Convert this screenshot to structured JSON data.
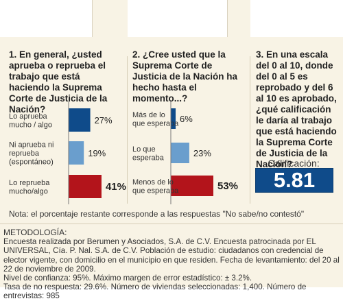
{
  "questions": {
    "q1": "1. En general, ¿usted aprueba o reprueba el trabajo que está haciendo la Suprema Corte de Justicia de la Nación?",
    "q2": "2. ¿Cree usted que la Suprema Corte de Justicia de la Nación ha hecho hasta el momento...?",
    "q3": "3. En una escala del 0 al 10, donde del 0 al 5 es reprobado y del 6 al 10 es aprobado, ¿qué calificación le daría al trabajo que está haciendo la Suprema Corte de Justicia de la Nación?"
  },
  "score": {
    "label": "Calificación:",
    "value": "5.81",
    "color": "#0f4b8a"
  },
  "note": "Nota: el porcentaje restante corresponde a las respuestas \"No sabe/no contestó\"",
  "methodology": {
    "title": "METODOLOGÍA:",
    "lines": [
      "Encuesta realizada por Berumen y Asociados, S.A. de C.V. Encuesta patrocinada por EL UNIVERSAL, Cía. P. Nal. S.A. de C.V. Población de estudio: ciudadanos con credencial de elector vigente, con domicilio en el municipio en que residen. Fecha de levantamiento: del 20 al 22 de noviembre de 2009.",
      "Nivel de confianza:  95%. Máximo margen de error estadístico: ± 3.2%.",
      "Tasa de no respuesta: 29.6%. Número de viviendas seleccionadas: 1,400. Número de entrevistas: 985"
    ]
  },
  "chart_data": [
    {
      "type": "bar",
      "orientation": "horizontal",
      "categories": [
        [
          "Lo aprueba",
          "mucho / algo"
        ],
        [
          "Ni aprueba ni",
          "reprueba",
          "(espontáneo)"
        ],
        [
          "Lo reprueba",
          "mucho/algo"
        ]
      ],
      "values": [
        27,
        19,
        41
      ],
      "value_labels": [
        "27%",
        "19%",
        "41%"
      ],
      "colors": [
        "#0f4b8a",
        "#6a9ecd",
        "#b3141b"
      ],
      "highlight": [
        false,
        false,
        true
      ],
      "xlim": [
        0,
        100
      ]
    },
    {
      "type": "bar",
      "orientation": "horizontal",
      "categories": [
        [
          "Más de lo",
          "que esperaba"
        ],
        [
          "Lo que",
          "esperaba"
        ],
        [
          "Menos de lo",
          "que esperaba"
        ]
      ],
      "values": [
        6,
        23,
        53
      ],
      "value_labels": [
        "6%",
        "23%",
        "53%"
      ],
      "colors": [
        "#0f4b8a",
        "#6a9ecd",
        "#b3141b"
      ],
      "highlight": [
        false,
        false,
        true
      ],
      "xlim": [
        0,
        100
      ]
    }
  ]
}
